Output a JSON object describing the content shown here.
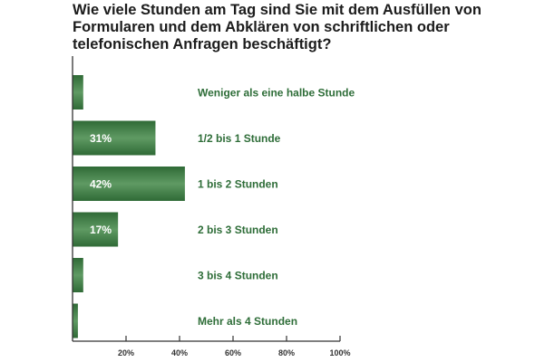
{
  "title": "Wie viele Stunden am Tag sind Sie mit dem Ausfüllen von Formularen und dem Abklären von schriftlichen oder telefonischen Anfragen beschäftigt?",
  "colors": {
    "bar": "#2f6a36",
    "bar_light": "#5f9a63",
    "label": "#2e6d38",
    "axis": "#333333"
  },
  "chart_data": {
    "type": "bar",
    "orientation": "horizontal",
    "title": "Wie viele Stunden am Tag sind Sie mit dem Ausfüllen von Formularen und dem Abklären von schriftlichen oder telefonischen Anfragen beschäftigt?",
    "categories": [
      "Weniger als eine halbe Stunde",
      "1/2 bis 1 Stunde",
      "1 bis 2 Stunden",
      "2 bis 3 Stunden",
      "3 bis 4 Stunden",
      "Mehr als 4 Stunden"
    ],
    "values": [
      4,
      31,
      42,
      17,
      4,
      2
    ],
    "value_labels": [
      "4%",
      "31%",
      "42%",
      "17%",
      "4%",
      "2%"
    ],
    "xlim": [
      0,
      100
    ],
    "xticks": [
      20,
      40,
      60,
      80,
      100
    ],
    "xtick_labels": [
      "20%",
      "40%",
      "60%",
      "80%",
      "100%"
    ],
    "grid": false,
    "legend": "none"
  }
}
